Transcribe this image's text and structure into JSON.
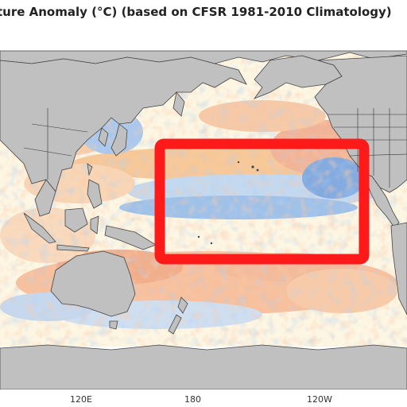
{
  "title": "ture Anomaly (°C) (based on CFSR 1981-2010 Climatology)",
  "longitude_labels": [
    "120E",
    "180",
    "120W"
  ],
  "colors": {
    "land": "#c0c0c0",
    "ocean_neutral": "#fdfbf0",
    "warm_anomaly": "#e8553a",
    "cool_anomaly": "#3a78d8",
    "highlight_box": "#ff1a1a"
  },
  "annotation": {
    "shape": "rectangle",
    "color": "#ff1a1a",
    "meaning": "highlighted region"
  }
}
